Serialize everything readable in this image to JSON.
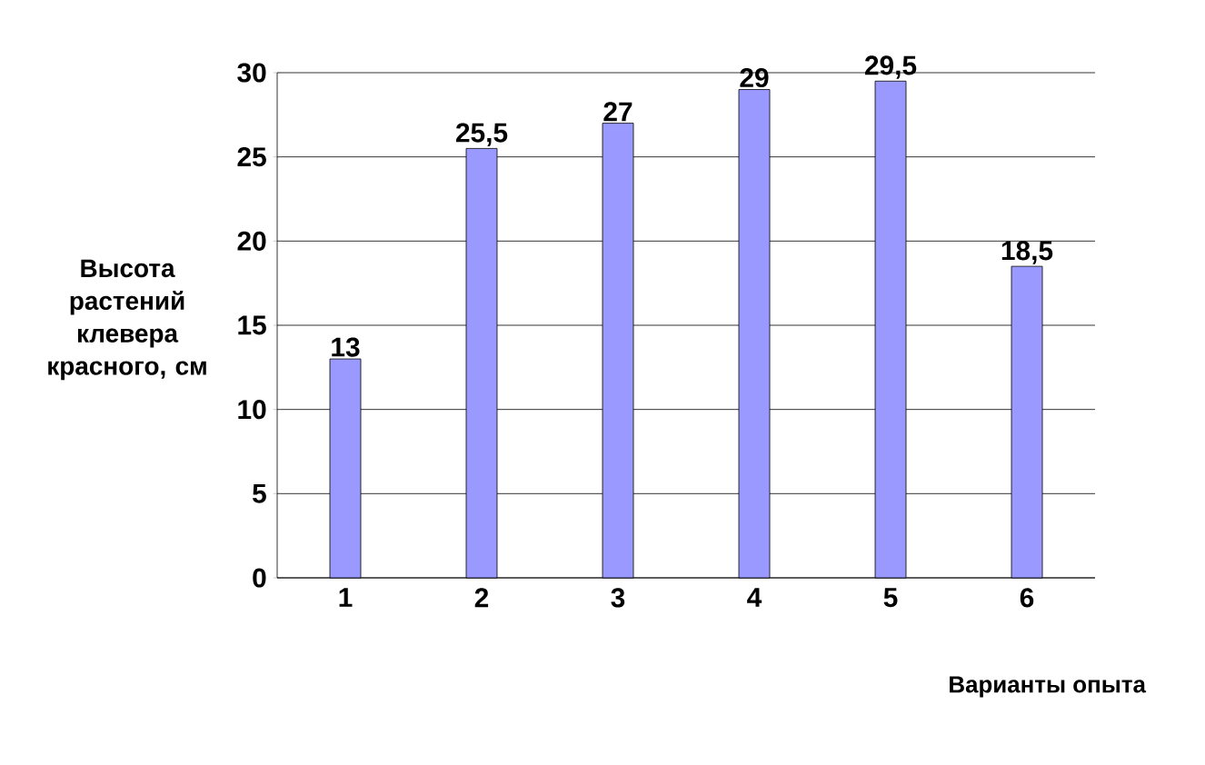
{
  "chart_data": {
    "type": "bar",
    "categories": [
      "1",
      "2",
      "3",
      "4",
      "5",
      "6"
    ],
    "values": [
      13,
      25.5,
      27,
      29,
      29.5,
      18.5
    ],
    "value_labels": [
      "13",
      "25,5",
      "27",
      "29",
      "29,5",
      "18,5"
    ],
    "color": "#9999ff",
    "ylabel": "Высота растений клевера красного, см",
    "xlabel": "Варианты опыта",
    "ylim": [
      0,
      30
    ],
    "yticks": [
      0,
      5,
      10,
      15,
      20,
      25,
      30
    ],
    "grid": "y"
  }
}
